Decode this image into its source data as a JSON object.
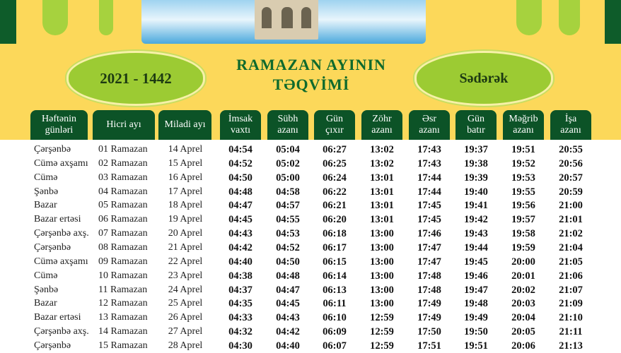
{
  "header": {
    "years": "2021 - 1442",
    "title_line1": "RAMAZAN AYININ",
    "title_line2": "TƏQVİMİ",
    "location": "Sədərək"
  },
  "colors": {
    "yellow": "#fcd85a",
    "dark_green": "#0c5327",
    "light_green": "#9ccb33",
    "title_green": "#0f6a2d"
  },
  "columns": [
    [
      "Həftənin",
      "günləri"
    ],
    [
      "Hicri ayı",
      ""
    ],
    [
      "Miladi ayı",
      ""
    ],
    [
      "İmsak",
      "vaxtı"
    ],
    [
      "Sübh",
      "azanı"
    ],
    [
      "Gün",
      "çıxır"
    ],
    [
      "Zöhr",
      "azanı"
    ],
    [
      "Əsr",
      "azanı"
    ],
    [
      "Gün",
      "batır"
    ],
    [
      "Məğrib",
      "azanı"
    ],
    [
      "İşa",
      "azanı"
    ]
  ],
  "rows": [
    [
      "Çərşənbə",
      "01 Ramazan",
      "14 Aprel",
      "04:54",
      "05:04",
      "06:27",
      "13:02",
      "17:43",
      "19:37",
      "19:51",
      "20:55"
    ],
    [
      "Cümə axşamı",
      "02 Ramazan",
      "15 Aprel",
      "04:52",
      "05:02",
      "06:25",
      "13:02",
      "17:43",
      "19:38",
      "19:52",
      "20:56"
    ],
    [
      "Cümə",
      "03 Ramazan",
      "16 Aprel",
      "04:50",
      "05:00",
      "06:24",
      "13:01",
      "17:44",
      "19:39",
      "19:53",
      "20:57"
    ],
    [
      "Şənbə",
      "04 Ramazan",
      "17 Aprel",
      "04:48",
      "04:58",
      "06:22",
      "13:01",
      "17:44",
      "19:40",
      "19:55",
      "20:59"
    ],
    [
      "Bazar",
      "05 Ramazan",
      "18 Aprel",
      "04:47",
      "04:57",
      "06:21",
      "13:01",
      "17:45",
      "19:41",
      "19:56",
      "21:00"
    ],
    [
      "Bazar ertəsi",
      "06 Ramazan",
      "19 Aprel",
      "04:45",
      "04:55",
      "06:20",
      "13:01",
      "17:45",
      "19:42",
      "19:57",
      "21:01"
    ],
    [
      "Çərşənbə axş.",
      "07 Ramazan",
      "20 Aprel",
      "04:43",
      "04:53",
      "06:18",
      "13:00",
      "17:46",
      "19:43",
      "19:58",
      "21:02"
    ],
    [
      "Çərşənbə",
      "08 Ramazan",
      "21 Aprel",
      "04:42",
      "04:52",
      "06:17",
      "13:00",
      "17:47",
      "19:44",
      "19:59",
      "21:04"
    ],
    [
      "Cümə axşamı",
      "09 Ramazan",
      "22 Aprel",
      "04:40",
      "04:50",
      "06:15",
      "13:00",
      "17:47",
      "19:45",
      "20:00",
      "21:05"
    ],
    [
      "Cümə",
      "10 Ramazan",
      "23 Aprel",
      "04:38",
      "04:48",
      "06:14",
      "13:00",
      "17:48",
      "19:46",
      "20:01",
      "21:06"
    ],
    [
      "Şənbə",
      "11 Ramazan",
      "24 Aprel",
      "04:37",
      "04:47",
      "06:13",
      "13:00",
      "17:48",
      "19:47",
      "20:02",
      "21:07"
    ],
    [
      "Bazar",
      "12 Ramazan",
      "25 Aprel",
      "04:35",
      "04:45",
      "06:11",
      "13:00",
      "17:49",
      "19:48",
      "20:03",
      "21:09"
    ],
    [
      "Bazar ertəsi",
      "13 Ramazan",
      "26 Aprel",
      "04:33",
      "04:43",
      "06:10",
      "12:59",
      "17:49",
      "19:49",
      "20:04",
      "21:10"
    ],
    [
      "Çərşənbə axş.",
      "14 Ramazan",
      "27 Aprel",
      "04:32",
      "04:42",
      "06:09",
      "12:59",
      "17:50",
      "19:50",
      "20:05",
      "21:11"
    ],
    [
      "Çərşənbə",
      "15 Ramazan",
      "28 Aprel",
      "04:30",
      "04:40",
      "06:07",
      "12:59",
      "17:51",
      "19:51",
      "20:06",
      "21:13"
    ]
  ]
}
